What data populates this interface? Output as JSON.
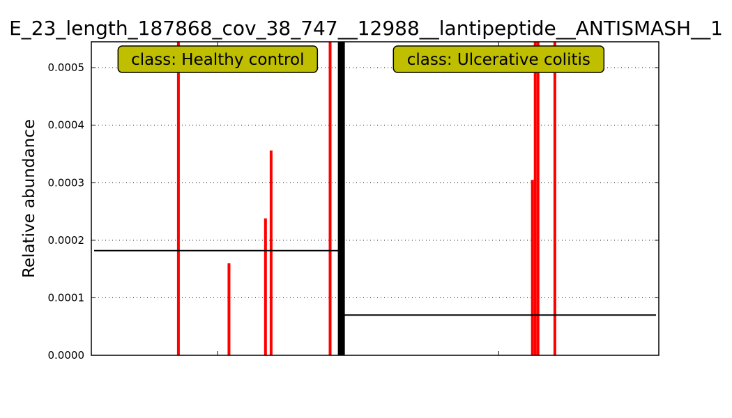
{
  "chart_data": {
    "type": "bar",
    "title": "E_23_length_187868_cov_38_747__12988__lantipeptide__ANTISMASH__1",
    "ylabel": "Relative abundance",
    "xlabel": "",
    "ylim": [
      0,
      0.000545
    ],
    "yticks": [
      "0.0000",
      "0.0001",
      "0.0002",
      "0.0003",
      "0.0004",
      "0.0005"
    ],
    "grid": "horizontal-dotted",
    "bar_color": "#ff0000",
    "mean_line_color": "#000000",
    "box_color": "#bfbf00",
    "n_samples": 200,
    "groups": [
      {
        "name": "Healthy control",
        "label": "class: Healthy control",
        "start": 0,
        "end": 88,
        "mean": 0.000182,
        "bars": [
          {
            "index": 30,
            "value": 0.000545
          },
          {
            "index": 48,
            "value": 0.00016
          },
          {
            "index": 61,
            "value": 0.000238
          },
          {
            "index": 63,
            "value": 0.000356
          },
          {
            "index": 84,
            "value": 0.000545
          }
        ]
      },
      {
        "name": "Ulcerative colitis",
        "label": "class: Ulcerative colitis",
        "start": 88,
        "end": 200,
        "mean": 7e-05,
        "bars": [
          {
            "index": 156,
            "value": 0.000305
          },
          {
            "index": 157,
            "value": 0.000545
          },
          {
            "index": 158,
            "value": 0.000545
          },
          {
            "index": 164,
            "value": 0.000545
          }
        ]
      }
    ],
    "separator_index": 88
  }
}
